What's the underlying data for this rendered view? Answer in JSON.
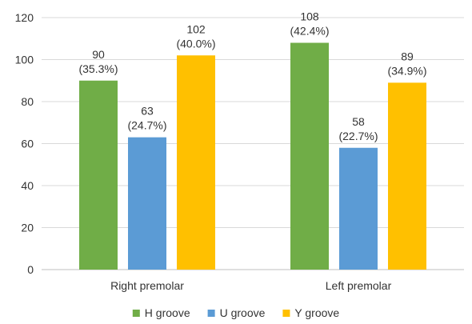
{
  "chart_data": {
    "type": "bar",
    "categories": [
      "Right premolar",
      "Left premolar"
    ],
    "series": [
      {
        "name": "H groove",
        "color": "#70ad47",
        "values": [
          90,
          108
        ],
        "labels": [
          "90",
          "108"
        ],
        "pct_labels": [
          "(35.3%)",
          "(42.4%)"
        ]
      },
      {
        "name": "U groove",
        "color": "#5b9bd5",
        "values": [
          63,
          58
        ],
        "labels": [
          "63",
          "58"
        ],
        "pct_labels": [
          "(24.7%)",
          "(22.7%)"
        ]
      },
      {
        "name": "Y groove",
        "color": "#ffc000",
        "values": [
          102,
          89
        ],
        "labels": [
          "102",
          "89"
        ],
        "pct_labels": [
          "(40.0%)",
          "(34.9%)"
        ]
      }
    ],
    "ylim": [
      0,
      120
    ],
    "yticks": [
      0,
      20,
      40,
      60,
      80,
      100,
      120
    ],
    "ytick_labels": [
      "0",
      "20",
      "40",
      "60",
      "80",
      "100",
      "120"
    ],
    "grid": true,
    "legend_position": "bottom",
    "title": "",
    "xlabel": "",
    "ylabel": ""
  }
}
